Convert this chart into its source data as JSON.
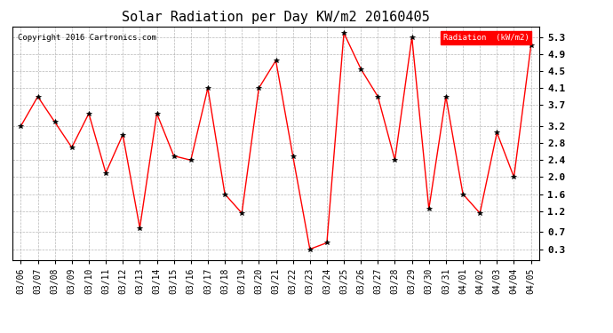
{
  "title": "Solar Radiation per Day KW/m2 20160405",
  "copyright": "Copyright 2016 Cartronics.com",
  "legend_label": "Radiation  (kW/m2)",
  "dates": [
    "03/06",
    "03/07",
    "03/08",
    "03/09",
    "03/10",
    "03/11",
    "03/12",
    "03/13",
    "03/14",
    "03/15",
    "03/16",
    "03/17",
    "03/18",
    "03/19",
    "03/20",
    "03/21",
    "03/22",
    "03/23",
    "03/24",
    "03/25",
    "03/26",
    "03/27",
    "03/28",
    "03/29",
    "03/30",
    "03/31",
    "04/01",
    "04/02",
    "04/03",
    "04/04",
    "04/05"
  ],
  "values": [
    3.2,
    3.9,
    3.3,
    2.7,
    3.5,
    2.1,
    3.0,
    0.8,
    3.5,
    2.5,
    2.4,
    4.1,
    1.6,
    1.15,
    4.1,
    4.75,
    2.5,
    0.3,
    0.45,
    5.4,
    4.55,
    3.9,
    2.4,
    5.3,
    1.25,
    3.9,
    1.6,
    1.15,
    3.05,
    2.0,
    5.1
  ],
  "line_color": "red",
  "marker_color": "black",
  "bg_color": "white",
  "legend_bg": "red",
  "legend_text_color": "white",
  "grid_color": "#999999",
  "yticks": [
    0.3,
    0.7,
    1.2,
    1.6,
    2.0,
    2.4,
    2.8,
    3.2,
    3.7,
    4.1,
    4.5,
    4.9,
    5.3
  ],
  "ymin": 0.05,
  "ymax": 5.55,
  "title_fontsize": 11,
  "tick_fontsize": 7,
  "copyright_fontsize": 6.5
}
